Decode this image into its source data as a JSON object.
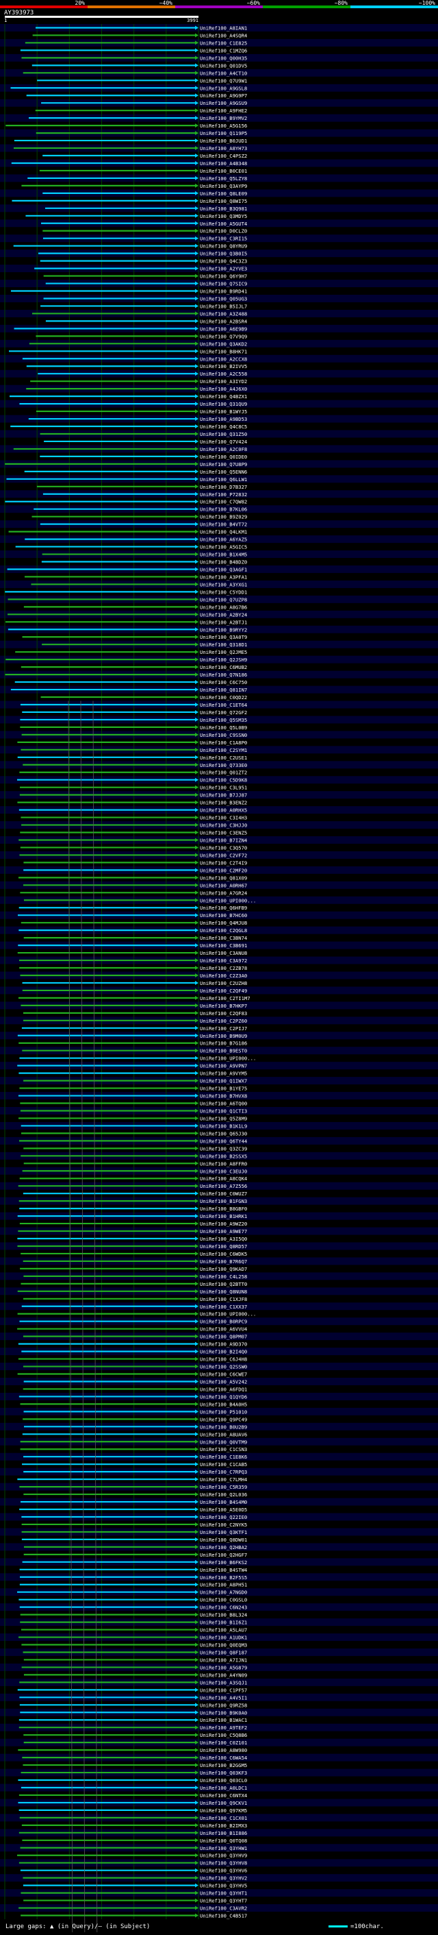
{
  "header": {
    "identity_bins": [
      "20%",
      "~40%",
      "~60%",
      "~80%",
      "~100%"
    ],
    "identity_colors": [
      "#e00000",
      "#e07000",
      "#a000c0",
      "#00a000",
      "#00d0ff"
    ],
    "query_id": "AY393973",
    "ruler_start": "1",
    "ruler_end": "3991"
  },
  "colors": {
    "background": "#000000",
    "grid": "#004000",
    "band": "#000030",
    "identity_high": "#00d0ff",
    "identity_mid": "#22b022",
    "connector": "#5a5a5a"
  },
  "hits": [
    "UniRef100_A8IAN1",
    "UniRef100_A4SQR4",
    "UniRef100_C1E825",
    "UniRef100_C1MZQ6",
    "UniRef100_Q00H35",
    "UniRef100_Q01DV5",
    "UniRef100_A4CT10",
    "UniRef100_Q7U9W1",
    "UniRef100_A9GSL8",
    "UniRef100_A9G9P7",
    "UniRef100_A9GSU9",
    "UniRef100_A9FHE2",
    "UniRef100_B9YMV2",
    "UniRef100_A5G156",
    "UniRef100_Q119P5",
    "UniRef100_B0JUD1",
    "UniRef100_A8YH73",
    "UniRef100_C4PSZ2",
    "UniRef100_A4B348",
    "UniRef100_B0CE01",
    "UniRef100_Q5LZY8",
    "UniRef100_Q3AYP9",
    "UniRef100_Q8LE09",
    "UniRef100_Q8WI75",
    "UniRef100_B3Q981",
    "UniRef100_Q3MDY5",
    "UniRef100_A5GUT4",
    "UniRef100_D0CLZ0",
    "UniRef100_C3RI15",
    "UniRef100_Q8YRU9",
    "UniRef100_Q3B0I5",
    "UniRef100_Q4C3Z3",
    "UniRef100_A2YVE3",
    "UniRef100_Q6Y9H7",
    "UniRef100_Q7SIC9",
    "UniRef100_B9RD41",
    "UniRef100_Q05UG3",
    "UniRef100_B5IJL7",
    "UniRef100_A3Z488",
    "UniRef100_A2BSR4",
    "UniRef100_A6E9B9",
    "UniRef100_Q7V9Q9",
    "UniRef100_Q3AKD2",
    "UniRef100_B8HK71",
    "UniRef100_A2CCX8",
    "UniRef100_B2IVV5",
    "UniRef100_A2C558",
    "UniRef100_A3IYD2",
    "UniRef100_A4J6X0",
    "UniRef100_Q4BZX1",
    "UniRef100_Q31QU9",
    "UniRef100_B1WYJ5",
    "UniRef100_A9BD53",
    "UniRef100_Q4C8C5",
    "UniRef100_Q31Z50",
    "UniRef100_Q7V424",
    "UniRef100_A2C0F8",
    "UniRef100_Q0IDE0",
    "UniRef100_Q7U8P9",
    "UniRef100_Q5ENN6",
    "UniRef100_Q6LLW1",
    "UniRef100_D7B327",
    "UniRef100_P72832",
    "UniRef100_C7QW82",
    "UniRef100_B7KL06",
    "UniRef100_B9Z029",
    "UniRef100_B4VT72",
    "UniRef100_Q4LKM1",
    "UniRef100_A6YAZ5",
    "UniRef100_A5GIC5",
    "UniRef100_B1X4M5",
    "UniRef100_B4BDZ0",
    "UniRef100_Q3AGF1",
    "UniRef100_A3PFA1",
    "UniRef100_A3YXG1",
    "UniRef100_C5YDD1",
    "UniRef100_Q7UZP8",
    "UniRef100_A8G7B6",
    "UniRef100_A2BY24",
    "UniRef100_A2BTJ1",
    "UniRef100_B9RYY2",
    "UniRef100_Q3A0T9",
    "UniRef100_Q318D1",
    "UniRef100_Q2JME5",
    "UniRef100_Q2JSH9",
    "UniRef100_C6MUB2",
    "UniRef100_Q7N186",
    "UniRef100_C6C750",
    "UniRef100_Q81IN7",
    "UniRef100_C0QD22",
    "UniRef100_C1ET64",
    "UniRef100_Q72GF2",
    "UniRef100_Q5SM35",
    "UniRef100_Q5L0B9",
    "UniRef100_C9SSN0",
    "UniRef100_C1A8P0",
    "UniRef100_C2SYM1",
    "UniRef100_C2USE1",
    "UniRef100_Q733E0",
    "UniRef100_Q01ZT2",
    "UniRef100_C5D9K8",
    "UniRef100_C3L951",
    "UniRef100_B7JJ87",
    "UniRef100_B3ENZ2",
    "UniRef100_A0RHX5",
    "UniRef100_C3I4H3",
    "UniRef100_C3HJJ0",
    "UniRef100_C3ENZ5",
    "UniRef100_B7IZN4",
    "UniRef100_C3Q570",
    "UniRef100_C2VF72",
    "UniRef100_C2T4I9",
    "UniRef100_C2MF20",
    "UniRef100_Q81X09",
    "UniRef100_A0RH67",
    "UniRef100_A7GR24",
    "UniRef100_UPI000...",
    "UniRef100_Q6HFB9",
    "UniRef100_B7HC60",
    "UniRef100_Q4MJU8",
    "UniRef100_C2QGL8",
    "UniRef100_C3BN74",
    "UniRef100_C3B691",
    "UniRef100_C3ANU8",
    "UniRef100_C3A972",
    "UniRef100_C2ZB78",
    "UniRef100_C2Z3A0",
    "UniRef100_C2UZH8",
    "UniRef100_C2QF49",
    "UniRef100_C2TI1M7",
    "UniRef100_B7HKP7",
    "UniRef100_C2QF83",
    "UniRef100_C2PZ60",
    "UniRef100_C2PIJ7",
    "UniRef100_B9M0U9",
    "UniRef100_B7G186",
    "UniRef100_B9EST0",
    "UniRef100_UPI000...",
    "UniRef100_A9VPN7",
    "UniRef100_A9VYM5",
    "UniRef100_Q1IWX7",
    "UniRef100_B1YE75",
    "UniRef100_B7HVX8",
    "UniRef100_A6TQ00",
    "UniRef100_Q1CTI3",
    "UniRef100_Q5Z8M9",
    "UniRef100_B1K1L9",
    "UniRef100_Q65J30",
    "UniRef100_Q6TY44",
    "UniRef100_Q3ZC39",
    "UniRef100_B2SSX5",
    "UniRef100_A8FFR0",
    "UniRef100_C3EUJ0",
    "UniRef100_A8CQK4",
    "UniRef100_A7Z556",
    "UniRef100_C0WUZ7",
    "UniRef100_B1FGN3",
    "UniRef100_B8GBF0",
    "UniRef100_B1HRK1",
    "UniRef100_A9WZ20",
    "UniRef100_A9WE77",
    "UniRef100_A3I5Q0",
    "UniRef100_Q8RD57",
    "UniRef100_C6WDK5",
    "UniRef100_B7R6Q7",
    "UniRef100_Q9KAD7",
    "UniRef100_C4L258",
    "UniRef100_Q2BTT0",
    "UniRef100_Q8NUN8",
    "UniRef100_C1XJF8",
    "UniRef100_C1XX37",
    "UniRef100_UPI000...",
    "UniRef100_B0RPC9",
    "UniRef100_A6VVU4",
    "UniRef100_Q8PM07",
    "UniRef100_A9D370",
    "UniRef100_B2I4Q0",
    "UniRef100_C6J4H8",
    "UniRef100_Q2SSW0",
    "UniRef100_C6CWE7",
    "UniRef100_A5V242",
    "UniRef100_A6FDQ1",
    "UniRef100_Q1QYD6",
    "UniRef100_B4A0H5",
    "UniRef100_P51010",
    "UniRef100_Q9PC49",
    "UniRef100_B0U2B9",
    "UniRef100_A8UAV6",
    "UniRef100_Q0VTM9",
    "UniRef100_C1CSN3",
    "UniRef100_C1E8K6",
    "UniRef100_C1CAB5",
    "UniRef100_C7RPQ3",
    "UniRef100_C7LMH4",
    "UniRef100_C5R359",
    "UniRef100_Q2L036",
    "UniRef100_B4S4M0",
    "UniRef100_A5E0D5",
    "UniRef100_Q22IE0",
    "UniRef100_C2NYK5",
    "UniRef100_Q3KTF1",
    "UniRef100_Q8DW01",
    "UniRef100_Q2HBA2",
    "UniRef100_Q2HGF7",
    "UniRef100_B6FKS2",
    "UniRef100_B4STW4",
    "UniRef100_B2F5S5",
    "UniRef100_A8PH51",
    "UniRef100_A7NGD0",
    "UniRef100_C0GSL0",
    "UniRef100_C6N243",
    "UniRef100_B8L324",
    "UniRef100_B1I6Z1",
    "UniRef100_A5LAU7",
    "UniRef100_A1UDK1",
    "UniRef100_Q0EQM3",
    "UniRef100_Q8F187",
    "UniRef100_A7IJN1",
    "UniRef100_A5G879",
    "UniRef100_A4YN09",
    "UniRef100_A3SQJ1",
    "UniRef100_C1PF57",
    "UniRef100_A4V5I1",
    "UniRef100_Q9RZ58",
    "UniRef100_B9K0A0",
    "UniRef100_B1WAC1",
    "UniRef100_A9TEF2",
    "UniRef100_C5Q8B6",
    "UniRef100_C0Z101",
    "UniRef100_A8W980",
    "UniRef100_C6WA54",
    "UniRef100_B2GGM5",
    "UniRef100_Q03KF3",
    "UniRef100_Q03CL0",
    "UniRef100_A0LDC1",
    "UniRef100_C6NTX4",
    "UniRef100_Q9CKV1",
    "UniRef100_Q97KM5",
    "UniRef100_C1CX01",
    "UniRef100_B2IMX3",
    "UniRef100_B1I886",
    "UniRef100_Q0TQ08",
    "UniRef100_Q3YHW1",
    "UniRef100_Q3YHV9",
    "UniRef100_Q3YHV8",
    "UniRef100_Q3YHV6",
    "UniRef100_Q3YHV2",
    "UniRef100_Q3YHV5",
    "UniRef100_Q3YHT1",
    "UniRef100_Q3YHT7",
    "UniRef100_C3AVR2",
    "UniRef100_C4B517"
  ],
  "footer": {
    "gap_note": "Large gaps: ▲ (in Query)/— (in Subject)",
    "scale_note": "=100char."
  }
}
